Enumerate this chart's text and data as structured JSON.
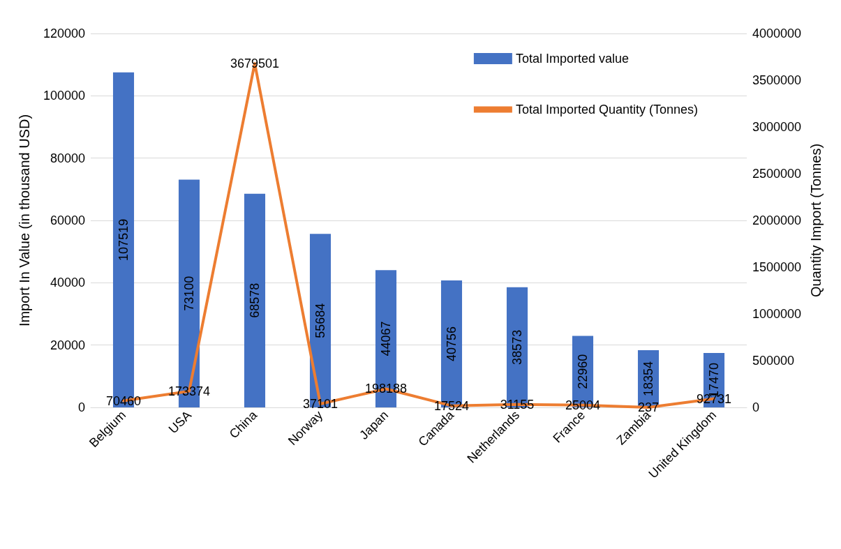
{
  "chart_data": {
    "type": "bar",
    "ylabel": "Import In Value (in thousand USD)",
    "y2label": "Quantity Import (Tonnes)",
    "categories": [
      "Belgium",
      "USA",
      "China",
      "Norway",
      "Japan",
      "Canada",
      "Netherlands",
      "France",
      "Zambia",
      "United Kingdom"
    ],
    "series": [
      {
        "name": "Total Imported value",
        "color": "#4472c4",
        "values": [
          107519,
          73100,
          68578,
          55684,
          44067,
          40756,
          38573,
          22960,
          18354,
          17470
        ]
      },
      {
        "name": "Total Imported Quantity (Tonnes)",
        "type": "line",
        "axis": "y2",
        "color": "#ed7d31",
        "values": [
          70460,
          173374,
          3679501,
          37101,
          198188,
          17524,
          31155,
          25004,
          237,
          92731
        ]
      }
    ],
    "ylim": [
      0,
      120000
    ],
    "yticks": [
      0,
      20000,
      40000,
      60000,
      80000,
      100000,
      120000
    ],
    "y2lim": [
      0,
      4000000
    ],
    "y2ticks": [
      0,
      500000,
      1000000,
      1500000,
      2000000,
      2500000,
      3000000,
      3500000,
      4000000
    ],
    "grid": "y",
    "legend": "top right",
    "data_labels": true,
    "marker": "none",
    "line_style": "solid"
  }
}
